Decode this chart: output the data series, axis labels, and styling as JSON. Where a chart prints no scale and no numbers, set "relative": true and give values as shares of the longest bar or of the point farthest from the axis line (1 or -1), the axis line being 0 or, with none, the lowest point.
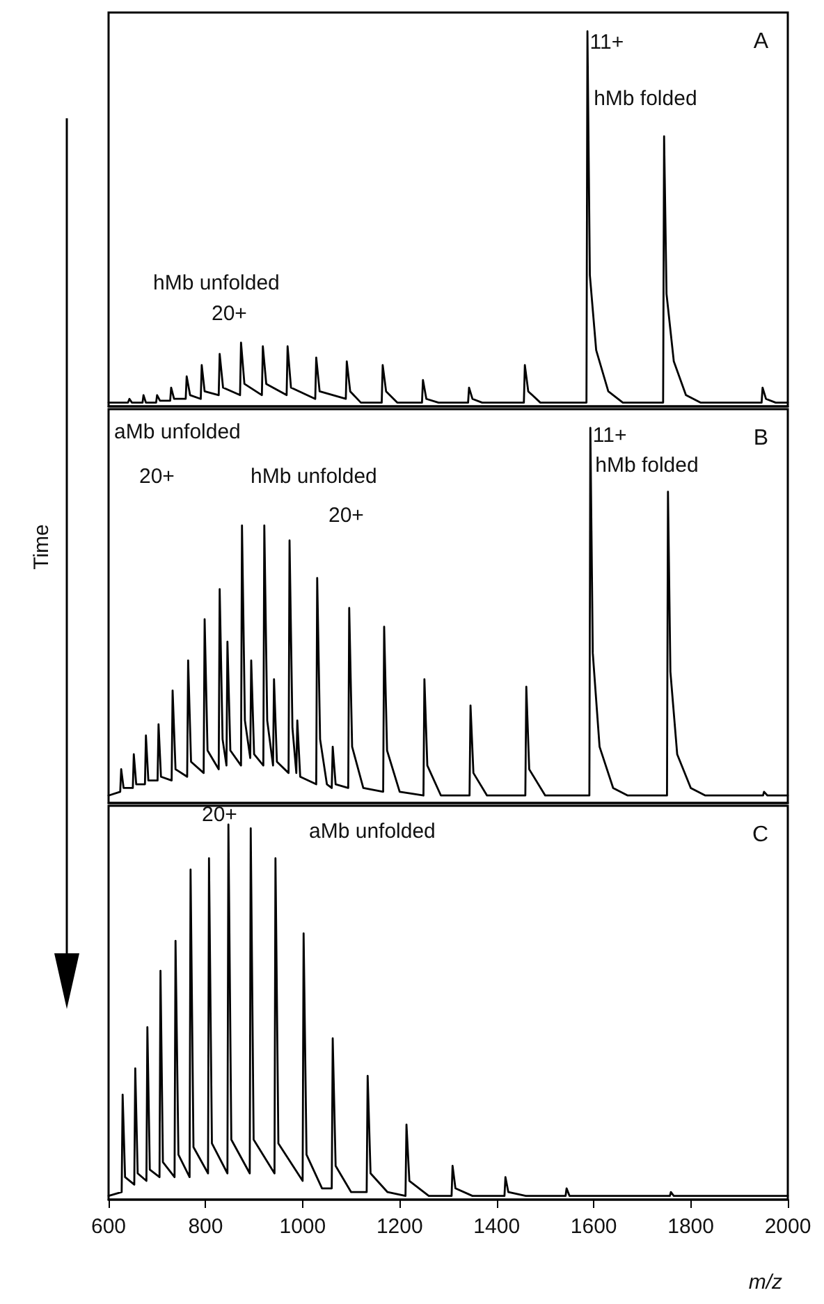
{
  "chart_data": [
    {
      "type": "line",
      "relative": true,
      "xlim": [
        600,
        2000
      ],
      "tick_labels": false,
      "color": "#000000",
      "x": [
        600,
        640,
        643,
        648,
        670,
        672,
        677,
        698,
        700,
        706,
        727,
        729,
        735,
        759,
        761,
        768,
        790,
        792,
        798,
        827,
        829,
        836,
        871,
        873,
        880,
        916,
        918,
        925,
        967,
        969,
        976,
        1026,
        1028,
        1035,
        1089,
        1091,
        1098,
        1120,
        1163,
        1165,
        1172,
        1195,
        1246,
        1248,
        1255,
        1280,
        1341,
        1343,
        1350,
        1370,
        1456,
        1458,
        1465,
        1490,
        1585,
        1587,
        1592,
        1605,
        1630,
        1660,
        1743,
        1745,
        1750,
        1765,
        1790,
        1820,
        1946,
        1948,
        1955,
        1975,
        2000
      ],
      "values": [
        0.01,
        0.01,
        0.02,
        0.01,
        0.01,
        0.03,
        0.01,
        0.01,
        0.03,
        0.015,
        0.015,
        0.05,
        0.02,
        0.02,
        0.08,
        0.03,
        0.02,
        0.11,
        0.04,
        0.03,
        0.14,
        0.05,
        0.03,
        0.17,
        0.06,
        0.03,
        0.16,
        0.06,
        0.03,
        0.16,
        0.05,
        0.02,
        0.13,
        0.04,
        0.02,
        0.12,
        0.04,
        0.01,
        0.01,
        0.11,
        0.04,
        0.01,
        0.01,
        0.07,
        0.02,
        0.01,
        0.01,
        0.05,
        0.02,
        0.01,
        0.01,
        0.11,
        0.04,
        0.01,
        0.01,
        1,
        0.35,
        0.15,
        0.04,
        0.01,
        0.01,
        0.72,
        0.3,
        0.12,
        0.03,
        0.01,
        0.01,
        0.05,
        0.02,
        0.01,
        0.01
      ],
      "annotations": [
        {
          "text": "11+",
          "x": 1592,
          "y": 0.97
        },
        {
          "text": "hMb folded",
          "x": 1600,
          "y": 0.82
        },
        "hMb unfolded",
        "20+",
        "A"
      ]
    },
    {
      "type": "line",
      "relative": true,
      "xlim": [
        600,
        2000
      ],
      "tick_labels": false,
      "color": "#000000",
      "ylabel": "Time",
      "x": [
        600,
        624,
        626,
        631,
        650,
        652,
        657,
        675,
        677,
        682,
        701,
        703,
        708,
        730,
        732,
        738,
        762,
        764,
        770,
        796,
        798,
        804,
        827,
        829,
        835,
        843,
        845,
        851,
        873,
        875,
        881,
        892,
        894,
        900,
        919,
        921,
        927,
        939,
        941,
        947,
        971,
        973,
        979,
        987,
        989,
        995,
        1028,
        1030,
        1036,
        1050,
        1060,
        1062,
        1068,
        1094,
        1096,
        1102,
        1125,
        1166,
        1168,
        1174,
        1200,
        1249,
        1251,
        1257,
        1285,
        1344,
        1346,
        1352,
        1380,
        1459,
        1461,
        1467,
        1500,
        1591,
        1593,
        1598,
        1612,
        1640,
        1670,
        1751,
        1753,
        1758,
        1772,
        1800,
        1830,
        1949,
        1951,
        1958,
        2000
      ],
      "values": [
        0.02,
        0.03,
        0.09,
        0.04,
        0.04,
        0.13,
        0.05,
        0.05,
        0.18,
        0.06,
        0.06,
        0.21,
        0.07,
        0.06,
        0.3,
        0.09,
        0.07,
        0.38,
        0.11,
        0.08,
        0.49,
        0.14,
        0.09,
        0.57,
        0.17,
        0.1,
        0.43,
        0.14,
        0.1,
        0.74,
        0.22,
        0.12,
        0.38,
        0.13,
        0.1,
        0.74,
        0.22,
        0.1,
        0.33,
        0.11,
        0.08,
        0.7,
        0.2,
        0.08,
        0.22,
        0.07,
        0.05,
        0.6,
        0.17,
        0.05,
        0.04,
        0.15,
        0.05,
        0.04,
        0.52,
        0.15,
        0.04,
        0.03,
        0.47,
        0.14,
        0.03,
        0.02,
        0.33,
        0.1,
        0.02,
        0.02,
        0.26,
        0.08,
        0.02,
        0.02,
        0.31,
        0.09,
        0.02,
        0.02,
        1,
        0.4,
        0.15,
        0.04,
        0.02,
        0.02,
        0.83,
        0.35,
        0.13,
        0.04,
        0.02,
        0.02,
        0.03,
        0.02,
        0.02
      ],
      "annotations": [
        "aMb unfolded",
        "20+",
        "hMb unfolded",
        "20+",
        {
          "text": "11+",
          "x": 1598,
          "y": 0.98
        },
        {
          "text": "hMb folded",
          "x": 1603,
          "y": 0.9
        },
        "B"
      ]
    },
    {
      "type": "line",
      "relative": true,
      "xlim": [
        600,
        2000
      ],
      "xticks": [
        600,
        800,
        1000,
        1200,
        1400,
        1600,
        1800,
        2000
      ],
      "tick_labels": "x",
      "color": "#000000",
      "xlabel": "m/z",
      "x": [
        600,
        627,
        629,
        634,
        653,
        655,
        660,
        678,
        680,
        685,
        705,
        707,
        712,
        736,
        738,
        744,
        767,
        769,
        775,
        805,
        807,
        813,
        845,
        847,
        853,
        891,
        893,
        899,
        942,
        944,
        950,
        1000,
        1002,
        1008,
        1040,
        1060,
        1062,
        1068,
        1100,
        1132,
        1134,
        1140,
        1175,
        1212,
        1214,
        1220,
        1260,
        1307,
        1309,
        1315,
        1350,
        1416,
        1418,
        1424,
        1460,
        1542,
        1544,
        1550,
        1757,
        1759,
        1765,
        2000
      ],
      "values": [
        0.01,
        0.02,
        0.28,
        0.06,
        0.04,
        0.35,
        0.07,
        0.05,
        0.46,
        0.08,
        0.06,
        0.61,
        0.1,
        0.06,
        0.69,
        0.12,
        0.06,
        0.88,
        0.14,
        0.07,
        0.91,
        0.15,
        0.07,
        1,
        0.16,
        0.07,
        0.99,
        0.16,
        0.07,
        0.91,
        0.15,
        0.05,
        0.71,
        0.12,
        0.03,
        0.03,
        0.43,
        0.09,
        0.02,
        0.02,
        0.33,
        0.07,
        0.02,
        0.01,
        0.2,
        0.05,
        0.01,
        0.01,
        0.09,
        0.03,
        0.01,
        0.01,
        0.06,
        0.02,
        0.01,
        0.01,
        0.03,
        0.01,
        0.01,
        0.02,
        0.01,
        0.01
      ],
      "annotations": [
        "20+",
        "aMb unfolded",
        "C"
      ]
    }
  ]
}
